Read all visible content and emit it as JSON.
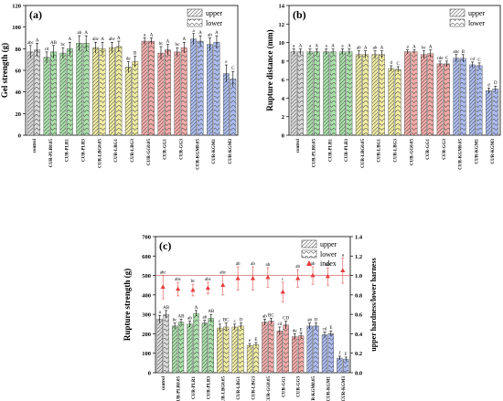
{
  "figure": {
    "categories": [
      "control",
      "CUR-PLR0.05",
      "CUR-PLR1",
      "CUR-PLR3",
      "CUR-LBG0.05",
      "CUR-LBG1",
      "CUR-LBG3",
      "CUR-GG0.05",
      "CUR-GG1",
      "CUR-GG3",
      "CUR-KGM0.05",
      "CUR-KGM1",
      "CUR-KGM3"
    ],
    "group_colors": [
      "#d9d9d9",
      "#a8e0a8",
      "#a8e0a8",
      "#a8e0a8",
      "#f0eca0",
      "#f0eca0",
      "#f0eca0",
      "#f4aaa8",
      "#f4aaa8",
      "#f4aaa8",
      "#aabbf0",
      "#aabbf0",
      "#aabbf0"
    ],
    "legend_upper": "upper",
    "legend_lower": "lower",
    "legend_index": "index"
  },
  "chart_data": [
    {
      "type": "bar",
      "panel_label": "(a)",
      "ylabel": "Gel strength (g)",
      "ylim": [
        0,
        120
      ],
      "yticks": [
        "0",
        "20",
        "40",
        "60",
        "80",
        "100",
        "120"
      ],
      "series": [
        {
          "name": "upper",
          "values": [
            77,
            72,
            76,
            85,
            81,
            81,
            63,
            87,
            76,
            77,
            89,
            84,
            57
          ],
          "errors": [
            6,
            5,
            5,
            7,
            5,
            5,
            5,
            3,
            6,
            4,
            5,
            6,
            8
          ],
          "labels": [
            "abc",
            "cd",
            "bc",
            "ab",
            "abc",
            "abc",
            "de",
            "a",
            "bc",
            "bc",
            "a",
            "ab",
            "e"
          ]
        },
        {
          "name": "lower",
          "values": [
            79,
            77,
            80,
            85,
            80,
            82,
            68,
            87,
            79,
            81,
            87,
            86,
            52
          ],
          "errors": [
            6,
            6,
            6,
            7,
            6,
            5,
            5,
            3,
            5,
            5,
            5,
            6,
            7
          ],
          "labels": [
            "A",
            "AB",
            "A",
            "A",
            "A",
            "A",
            "B",
            "A",
            "A",
            "A",
            "A",
            "A",
            "C"
          ]
        }
      ]
    },
    {
      "type": "bar",
      "panel_label": "(b)",
      "ylabel": "Rupture distance (mm)",
      "ylim": [
        0,
        14
      ],
      "yticks": [
        "0",
        "2",
        "4",
        "6",
        "8",
        "10",
        "12",
        "14"
      ],
      "series": [
        {
          "name": "upper",
          "values": [
            9.0,
            9.0,
            9.0,
            9.0,
            8.7,
            8.7,
            7.2,
            9.0,
            8.7,
            7.7,
            8.3,
            7.6,
            4.8
          ],
          "errors": [
            0.3,
            0.3,
            0.3,
            0.3,
            0.4,
            0.4,
            0.3,
            0.2,
            0.4,
            0.3,
            0.4,
            0.3,
            0.3
          ],
          "labels": [
            "a",
            "a",
            "a",
            "a",
            "ab",
            "ab",
            "d",
            "a",
            "bc",
            "cde",
            "abc",
            "cd",
            "d"
          ]
        },
        {
          "name": "lower",
          "values": [
            9.0,
            9.0,
            9.0,
            9.0,
            8.7,
            8.7,
            7.1,
            9.0,
            8.8,
            7.7,
            8.3,
            7.5,
            5.0
          ],
          "errors": [
            0.3,
            0.3,
            0.3,
            0.3,
            0.4,
            0.4,
            0.3,
            0.2,
            0.4,
            0.3,
            0.4,
            0.3,
            0.3
          ],
          "labels": [
            "A",
            "A",
            "A",
            "A",
            "A",
            "A",
            "C",
            "A",
            "A",
            "C",
            "B",
            "C",
            "D"
          ]
        }
      ]
    },
    {
      "type": "bar",
      "panel_label": "(c)",
      "ylabel": "Rupture strength (g)",
      "y2label": "upper hardness/lower harness",
      "ylim": [
        0,
        700
      ],
      "yticks": [
        "0",
        "100",
        "200",
        "300",
        "400",
        "500",
        "600",
        "700"
      ],
      "y2lim": [
        0.0,
        1.4
      ],
      "y2ticks": [
        "0.0",
        "0.2",
        "0.4",
        "0.6",
        "0.8",
        "1.0",
        "1.2",
        "1.4"
      ],
      "series": [
        {
          "name": "upper",
          "values": [
            275,
            240,
            250,
            255,
            230,
            235,
            140,
            260,
            215,
            185,
            240,
            195,
            75
          ],
          "errors": [
            20,
            15,
            15,
            15,
            20,
            15,
            10,
            15,
            20,
            15,
            15,
            15,
            10
          ],
          "labels": [
            "a",
            "bc",
            "ab",
            "ab",
            "c",
            "c",
            "e",
            "ab",
            "cd",
            "de",
            "ab",
            "cd",
            "f"
          ]
        },
        {
          "name": "lower",
          "values": [
            300,
            260,
            305,
            280,
            235,
            240,
            145,
            265,
            245,
            190,
            240,
            200,
            70
          ],
          "errors": [
            20,
            15,
            15,
            20,
            20,
            15,
            10,
            15,
            20,
            15,
            15,
            15,
            10
          ],
          "labels": [
            "AB",
            "AB",
            "A",
            "AB",
            "BC",
            "D",
            "E",
            "BC",
            "CD",
            "E",
            "D",
            "E",
            "F"
          ]
        },
        {
          "name": "index",
          "values": [
            0.88,
            0.86,
            0.85,
            0.87,
            0.9,
            0.97,
            0.97,
            0.98,
            0.83,
            0.97,
            1.0,
            0.99,
            1.05
          ],
          "errors": [
            0.12,
            0.07,
            0.06,
            0.06,
            0.1,
            0.12,
            0.12,
            0.1,
            0.1,
            0.09,
            0.09,
            0.09,
            0.13
          ],
          "labels": [
            "abc",
            "abc",
            "bc",
            "abc",
            "abc",
            "ab",
            "ab",
            "ab",
            "c",
            "ab",
            "ab",
            "ab",
            "a"
          ]
        }
      ],
      "reference_line": 1.0
    }
  ]
}
